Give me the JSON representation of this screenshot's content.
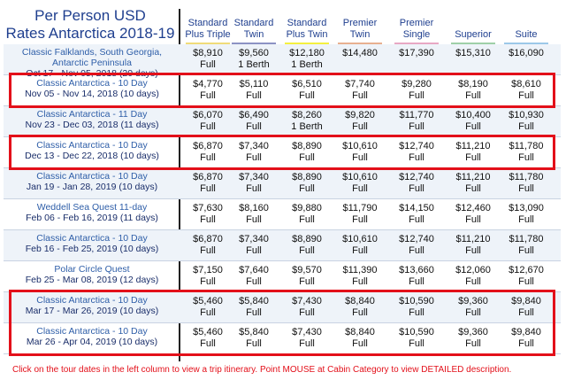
{
  "title_line1": "Per Person USD",
  "title_line2": "Rates Antarctica 2018-19",
  "categories": [
    {
      "label1": "Standard",
      "label2": "Plus Triple",
      "color": "#f0dc7a"
    },
    {
      "label1": "Standard",
      "label2": "Twin",
      "color": "#8c93c4"
    },
    {
      "label1": "Standard",
      "label2": "Plus Twin",
      "color": "#f4f040"
    },
    {
      "label1": "",
      "label2": "Premier Twin",
      "color": "#e8b090"
    },
    {
      "label1": "Premier",
      "label2": "Single",
      "color": "#e8a8c4"
    },
    {
      "label1": "",
      "label2": "Superior",
      "color": "#9fd0a8"
    },
    {
      "label1": "",
      "label2": "Suite",
      "color": "#9cc8e8"
    }
  ],
  "rows": [
    {
      "name": "Classic Falklands, South Georgia, Antarctic Peninsula",
      "dates": "Oct 17 - Nov 05, 2018 (20 days)",
      "prices": [
        "$8,910",
        "$9,560",
        "$12,180",
        "$14,480",
        "$17,390",
        "$15,310",
        "$16,090"
      ],
      "avail": [
        "Full",
        "1 Berth",
        "1 Berth",
        "",
        "",
        "",
        ""
      ],
      "highlight": false
    },
    {
      "name": "Classic Antarctica - 10 Day",
      "dates": "Nov 05 - Nov 14, 2018 (10 days)",
      "prices": [
        "$4,770",
        "$5,110",
        "$6,510",
        "$7,740",
        "$9,280",
        "$8,190",
        "$8,610"
      ],
      "avail": [
        "Full",
        "Full",
        "Full",
        "Full",
        "Full",
        "Full",
        "Full"
      ],
      "highlight": true
    },
    {
      "name": "Classic Antarctica - 11 Day",
      "dates": "Nov 23 - Dec 03, 2018 (11 days)",
      "prices": [
        "$6,070",
        "$6,490",
        "$8,260",
        "$9,820",
        "$11,770",
        "$10,400",
        "$10,930"
      ],
      "avail": [
        "Full",
        "Full",
        "1 Berth",
        "Full",
        "Full",
        "Full",
        "Full"
      ],
      "highlight": false
    },
    {
      "name": "Classic Antarctica - 10 Day",
      "dates": "Dec 13 - Dec 22, 2018 (10 days)",
      "prices": [
        "$6,870",
        "$7,340",
        "$8,890",
        "$10,610",
        "$12,740",
        "$11,210",
        "$11,780"
      ],
      "avail": [
        "Full",
        "Full",
        "Full",
        "Full",
        "Full",
        "Full",
        "Full"
      ],
      "highlight": true
    },
    {
      "name": "Classic Antarctica - 10 Day",
      "dates": "Jan 19 - Jan 28, 2019 (10 days)",
      "prices": [
        "$6,870",
        "$7,340",
        "$8,890",
        "$10,610",
        "$12,740",
        "$11,210",
        "$11,780"
      ],
      "avail": [
        "Full",
        "Full",
        "Full",
        "Full",
        "Full",
        "Full",
        "Full"
      ],
      "highlight": false
    },
    {
      "name": "Weddell Sea Quest 11-day",
      "dates": "Feb 06 - Feb 16, 2019 (11 days)",
      "prices": [
        "$7,630",
        "$8,160",
        "$9,880",
        "$11,790",
        "$14,150",
        "$12,460",
        "$13,090"
      ],
      "avail": [
        "Full",
        "Full",
        "Full",
        "Full",
        "Full",
        "Full",
        "Full"
      ],
      "highlight": false
    },
    {
      "name": "Classic Antarctica - 10 Day",
      "dates": "Feb 16 - Feb 25, 2019 (10 days)",
      "prices": [
        "$6,870",
        "$7,340",
        "$8,890",
        "$10,610",
        "$12,740",
        "$11,210",
        "$11,780"
      ],
      "avail": [
        "Full",
        "Full",
        "Full",
        "Full",
        "Full",
        "Full",
        "Full"
      ],
      "highlight": false
    },
    {
      "name": "Polar Circle Quest",
      "dates": "Feb 25 - Mar 08, 2019 (12 days)",
      "prices": [
        "$7,150",
        "$7,640",
        "$9,570",
        "$11,390",
        "$13,660",
        "$12,060",
        "$12,670"
      ],
      "avail": [
        "Full",
        "Full",
        "Full",
        "Full",
        "Full",
        "Full",
        "Full"
      ],
      "highlight": false
    },
    {
      "name": "Classic Antarctica - 10 Day",
      "dates": "Mar 17 - Mar 26, 2019 (10 days)",
      "prices": [
        "$5,460",
        "$5,840",
        "$7,430",
        "$8,840",
        "$10,590",
        "$9,360",
        "$9,840"
      ],
      "avail": [
        "Full",
        "Full",
        "Full",
        "Full",
        "Full",
        "Full",
        "Full"
      ],
      "highlight": true
    },
    {
      "name": "Classic Antarctica - 10 Day",
      "dates": "Mar 26 - Apr 04, 2019 (10 days)",
      "prices": [
        "$5,460",
        "$5,840",
        "$7,430",
        "$8,840",
        "$10,590",
        "$9,360",
        "$9,840"
      ],
      "avail": [
        "Full",
        "Full",
        "Full",
        "Full",
        "Full",
        "Full",
        "Full"
      ],
      "highlight": true
    }
  ],
  "footnote": "Click on the tour dates in the left column to view a trip itinerary. Point MOUSE at Cabin Category to view DETAILED description."
}
